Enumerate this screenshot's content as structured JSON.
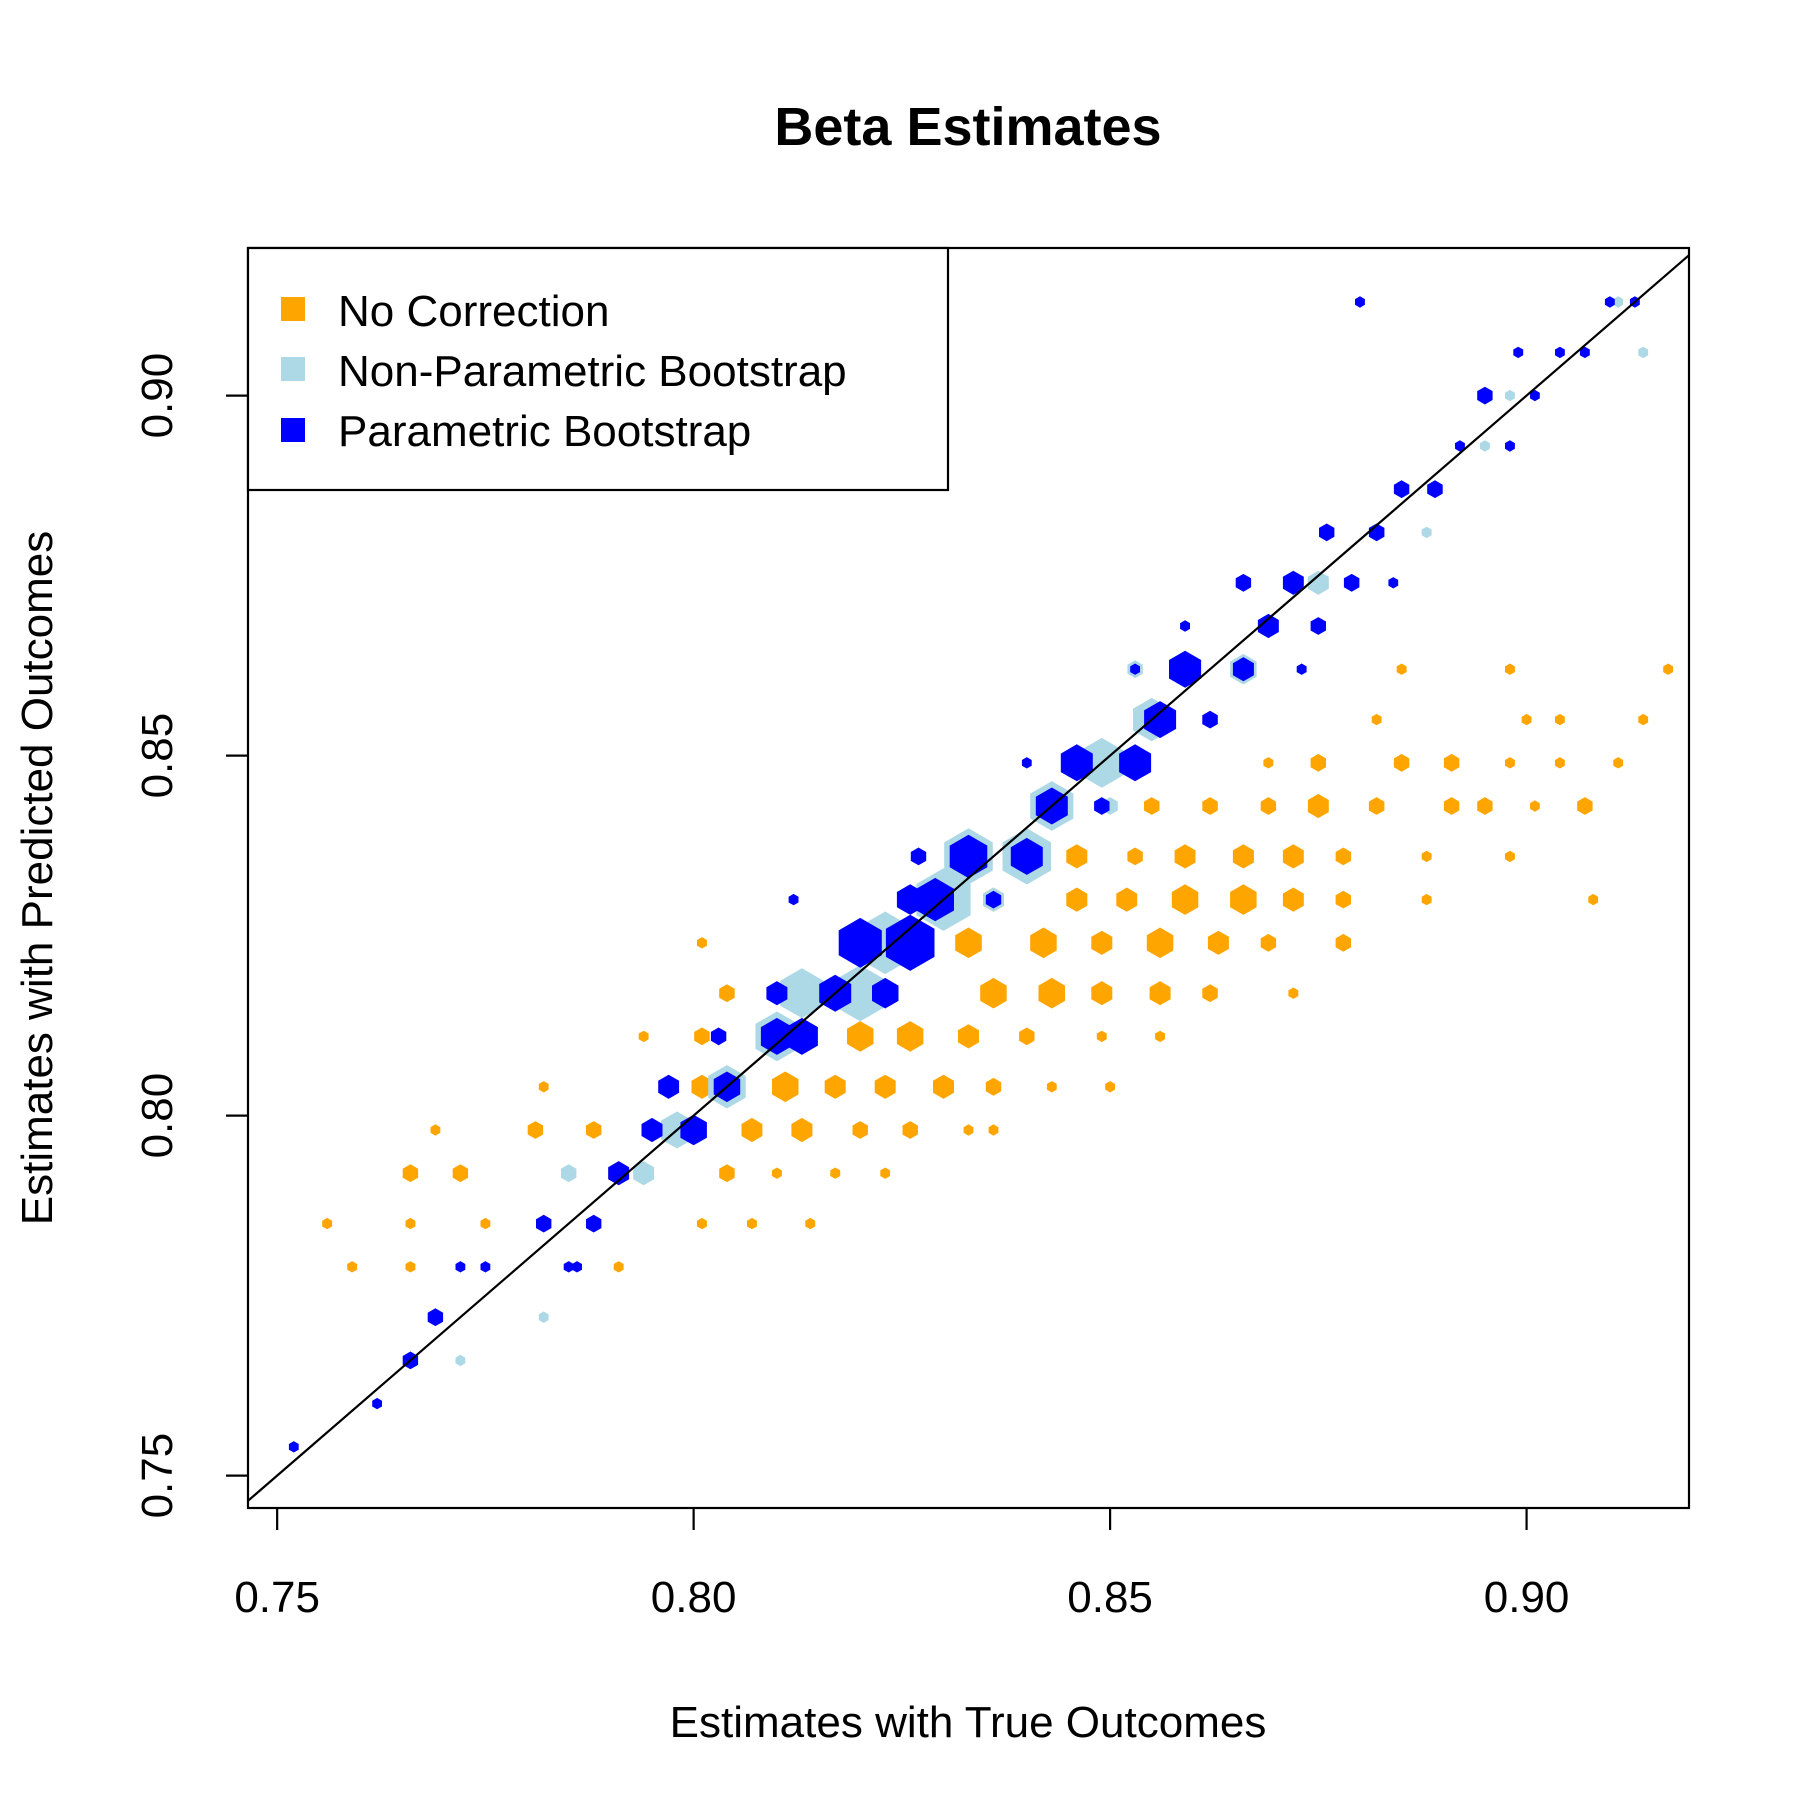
{
  "chart_data": {
    "type": "scatter",
    "subtype": "hexbin",
    "title": "Beta Estimates",
    "xlabel": "Estimates with True Outcomes",
    "ylabel": "Estimates with Predicted Outcomes",
    "xlim": [
      0.7465,
      0.9195
    ],
    "ylim": [
      0.7455,
      0.9205
    ],
    "xticks": [
      0.75,
      0.8,
      0.85,
      0.9
    ],
    "yticks": [
      0.75,
      0.8,
      0.85,
      0.9
    ],
    "xtick_labels": [
      "0.75",
      "0.80",
      "0.85",
      "0.90"
    ],
    "ytick_labels": [
      "0.75",
      "0.80",
      "0.85",
      "0.90"
    ],
    "grid": false,
    "legend_position": "top-left",
    "reference_line": {
      "type": "identity",
      "slope": 1,
      "intercept": 0
    },
    "series": [
      {
        "name": "No Correction",
        "color": "#FFA500",
        "points": [
          [
            0.756,
            0.785,
            1
          ],
          [
            0.759,
            0.779,
            1
          ],
          [
            0.766,
            0.779,
            1
          ],
          [
            0.766,
            0.785,
            1
          ],
          [
            0.766,
            0.792,
            2
          ],
          [
            0.769,
            0.798,
            1
          ],
          [
            0.772,
            0.792,
            2
          ],
          [
            0.775,
            0.785,
            1
          ],
          [
            0.781,
            0.798,
            2
          ],
          [
            0.782,
            0.804,
            1
          ],
          [
            0.788,
            0.798,
            2
          ],
          [
            0.791,
            0.779,
            1
          ],
          [
            0.791,
            0.792,
            3
          ],
          [
            0.795,
            0.798,
            2
          ],
          [
            0.794,
            0.811,
            1
          ],
          [
            0.801,
            0.804,
            3
          ],
          [
            0.801,
            0.811,
            2
          ],
          [
            0.804,
            0.817,
            2
          ],
          [
            0.801,
            0.824,
            1
          ],
          [
            0.801,
            0.785,
            1
          ],
          [
            0.804,
            0.792,
            2
          ],
          [
            0.807,
            0.798,
            3
          ],
          [
            0.807,
            0.785,
            1
          ],
          [
            0.81,
            0.792,
            1
          ],
          [
            0.811,
            0.804,
            4
          ],
          [
            0.813,
            0.798,
            3
          ],
          [
            0.817,
            0.804,
            3
          ],
          [
            0.814,
            0.785,
            1
          ],
          [
            0.817,
            0.792,
            1
          ],
          [
            0.82,
            0.798,
            2
          ],
          [
            0.82,
            0.811,
            4
          ],
          [
            0.823,
            0.804,
            3
          ],
          [
            0.823,
            0.792,
            1
          ],
          [
            0.826,
            0.798,
            2
          ],
          [
            0.826,
            0.811,
            4
          ],
          [
            0.83,
            0.804,
            3
          ],
          [
            0.833,
            0.798,
            1
          ],
          [
            0.836,
            0.798,
            1
          ],
          [
            0.833,
            0.811,
            3
          ],
          [
            0.836,
            0.804,
            2
          ],
          [
            0.833,
            0.824,
            4
          ],
          [
            0.836,
            0.817,
            4
          ],
          [
            0.836,
            0.83,
            3
          ],
          [
            0.84,
            0.811,
            2
          ],
          [
            0.842,
            0.824,
            4
          ],
          [
            0.843,
            0.817,
            4
          ],
          [
            0.843,
            0.804,
            1
          ],
          [
            0.846,
            0.83,
            3
          ],
          [
            0.846,
            0.836,
            3
          ],
          [
            0.849,
            0.824,
            3
          ],
          [
            0.849,
            0.817,
            3
          ],
          [
            0.85,
            0.804,
            1
          ],
          [
            0.849,
            0.811,
            1
          ],
          [
            0.852,
            0.83,
            3
          ],
          [
            0.853,
            0.836,
            2
          ],
          [
            0.855,
            0.843,
            2
          ],
          [
            0.856,
            0.824,
            4
          ],
          [
            0.856,
            0.817,
            3
          ],
          [
            0.856,
            0.811,
            1
          ],
          [
            0.859,
            0.83,
            4
          ],
          [
            0.859,
            0.836,
            3
          ],
          [
            0.862,
            0.843,
            2
          ],
          [
            0.863,
            0.824,
            3
          ],
          [
            0.862,
            0.817,
            2
          ],
          [
            0.866,
            0.83,
            4
          ],
          [
            0.866,
            0.836,
            3
          ],
          [
            0.869,
            0.843,
            2
          ],
          [
            0.869,
            0.824,
            2
          ],
          [
            0.872,
            0.83,
            3
          ],
          [
            0.872,
            0.836,
            3
          ],
          [
            0.872,
            0.817,
            1
          ],
          [
            0.869,
            0.849,
            1
          ],
          [
            0.875,
            0.843,
            3
          ],
          [
            0.875,
            0.849,
            2
          ],
          [
            0.878,
            0.83,
            2
          ],
          [
            0.878,
            0.836,
            2
          ],
          [
            0.878,
            0.824,
            2
          ],
          [
            0.882,
            0.843,
            2
          ],
          [
            0.882,
            0.855,
            1
          ],
          [
            0.885,
            0.849,
            2
          ],
          [
            0.885,
            0.862,
            1
          ],
          [
            0.888,
            0.83,
            1
          ],
          [
            0.888,
            0.836,
            1
          ],
          [
            0.891,
            0.843,
            2
          ],
          [
            0.891,
            0.849,
            2
          ],
          [
            0.895,
            0.843,
            2
          ],
          [
            0.898,
            0.849,
            1
          ],
          [
            0.898,
            0.836,
            1
          ],
          [
            0.898,
            0.862,
            1
          ],
          [
            0.9,
            0.855,
            1
          ],
          [
            0.901,
            0.843,
            1
          ],
          [
            0.904,
            0.849,
            1
          ],
          [
            0.904,
            0.855,
            1
          ],
          [
            0.907,
            0.843,
            2
          ],
          [
            0.911,
            0.849,
            1
          ],
          [
            0.914,
            0.855,
            1
          ],
          [
            0.917,
            0.862,
            1
          ],
          [
            0.908,
            0.83,
            1
          ]
        ]
      },
      {
        "name": "Non-Parametric Bootstrap",
        "color": "#ADD8E6",
        "points": [
          [
            0.772,
            0.766,
            1
          ],
          [
            0.782,
            0.772,
            1
          ],
          [
            0.785,
            0.792,
            2
          ],
          [
            0.794,
            0.792,
            3
          ],
          [
            0.798,
            0.798,
            5
          ],
          [
            0.804,
            0.804,
            6
          ],
          [
            0.81,
            0.811,
            7
          ],
          [
            0.813,
            0.817,
            7
          ],
          [
            0.82,
            0.817,
            8
          ],
          [
            0.823,
            0.824,
            9
          ],
          [
            0.83,
            0.83,
            9
          ],
          [
            0.833,
            0.836,
            8
          ],
          [
            0.84,
            0.836,
            8
          ],
          [
            0.843,
            0.843,
            7
          ],
          [
            0.849,
            0.849,
            7
          ],
          [
            0.855,
            0.855,
            6
          ],
          [
            0.859,
            0.862,
            5
          ],
          [
            0.866,
            0.862,
            4
          ],
          [
            0.869,
            0.868,
            3
          ],
          [
            0.875,
            0.874,
            3
          ],
          [
            0.882,
            0.881,
            2
          ],
          [
            0.885,
            0.887,
            2
          ],
          [
            0.888,
            0.881,
            1
          ],
          [
            0.895,
            0.893,
            1
          ],
          [
            0.898,
            0.9,
            1
          ],
          [
            0.904,
            0.906,
            1
          ],
          [
            0.911,
            0.913,
            1
          ],
          [
            0.914,
            0.906,
            1
          ],
          [
            0.85,
            0.843,
            2
          ],
          [
            0.853,
            0.862,
            2
          ],
          [
            0.836,
            0.83,
            3
          ]
        ]
      },
      {
        "name": "Parametric Bootstrap",
        "color": "#0000FF",
        "points": [
          [
            0.752,
            0.754,
            1
          ],
          [
            0.762,
            0.76,
            1
          ],
          [
            0.766,
            0.766,
            2
          ],
          [
            0.769,
            0.772,
            2
          ],
          [
            0.772,
            0.779,
            1
          ],
          [
            0.775,
            0.779,
            1
          ],
          [
            0.782,
            0.785,
            2
          ],
          [
            0.785,
            0.779,
            1
          ],
          [
            0.788,
            0.785,
            2
          ],
          [
            0.791,
            0.792,
            3
          ],
          [
            0.795,
            0.798,
            3
          ],
          [
            0.797,
            0.804,
            3
          ],
          [
            0.8,
            0.798,
            4
          ],
          [
            0.803,
            0.811,
            2
          ],
          [
            0.804,
            0.804,
            4
          ],
          [
            0.81,
            0.811,
            5
          ],
          [
            0.81,
            0.817,
            3
          ],
          [
            0.813,
            0.811,
            5
          ],
          [
            0.817,
            0.817,
            5
          ],
          [
            0.82,
            0.824,
            7
          ],
          [
            0.823,
            0.817,
            4
          ],
          [
            0.826,
            0.824,
            8
          ],
          [
            0.826,
            0.83,
            4
          ],
          [
            0.829,
            0.83,
            6
          ],
          [
            0.833,
            0.836,
            6
          ],
          [
            0.836,
            0.83,
            2
          ],
          [
            0.84,
            0.836,
            5
          ],
          [
            0.843,
            0.843,
            5
          ],
          [
            0.846,
            0.849,
            5
          ],
          [
            0.849,
            0.843,
            2
          ],
          [
            0.853,
            0.849,
            5
          ],
          [
            0.856,
            0.855,
            5
          ],
          [
            0.859,
            0.862,
            5
          ],
          [
            0.862,
            0.855,
            2
          ],
          [
            0.866,
            0.862,
            3
          ],
          [
            0.869,
            0.868,
            3
          ],
          [
            0.866,
            0.874,
            2
          ],
          [
            0.872,
            0.874,
            3
          ],
          [
            0.875,
            0.868,
            2
          ],
          [
            0.876,
            0.881,
            2
          ],
          [
            0.879,
            0.874,
            2
          ],
          [
            0.882,
            0.881,
            2
          ],
          [
            0.885,
            0.887,
            2
          ],
          [
            0.889,
            0.887,
            2
          ],
          [
            0.892,
            0.893,
            1
          ],
          [
            0.895,
            0.9,
            2
          ],
          [
            0.898,
            0.893,
            1
          ],
          [
            0.901,
            0.9,
            1
          ],
          [
            0.904,
            0.906,
            1
          ],
          [
            0.907,
            0.906,
            1
          ],
          [
            0.91,
            0.913,
            1
          ],
          [
            0.913,
            0.913,
            1
          ],
          [
            0.84,
            0.849,
            1
          ],
          [
            0.827,
            0.836,
            2
          ],
          [
            0.812,
            0.83,
            1
          ],
          [
            0.853,
            0.862,
            1
          ],
          [
            0.859,
            0.868,
            1
          ],
          [
            0.873,
            0.862,
            1
          ],
          [
            0.884,
            0.874,
            1
          ],
          [
            0.899,
            0.906,
            1
          ],
          [
            0.88,
            0.913,
            1
          ],
          [
            0.786,
            0.779,
            1
          ]
        ]
      }
    ]
  }
}
